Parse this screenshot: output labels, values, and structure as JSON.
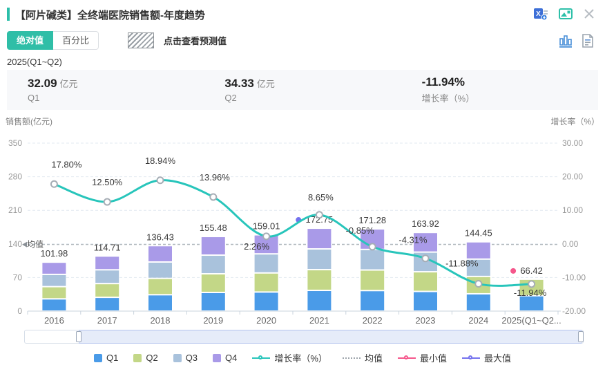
{
  "header": {
    "title": "【阿片碱类】全终端医院销售额-年度趋势",
    "icons": [
      "excel-export-icon",
      "image-export-icon",
      "close-icon"
    ],
    "view_icons": [
      "bar-chart-view-icon",
      "report-view-icon"
    ]
  },
  "controls": {
    "toggle_absolute": "绝对值",
    "toggle_percent": "百分比",
    "forecast_hint": "点击查看预测值"
  },
  "period": "2025(Q1~Q2)",
  "stats": [
    {
      "value": "32.09",
      "unit": "亿元",
      "label": "Q1"
    },
    {
      "value": "34.33",
      "unit": "亿元",
      "label": "Q2"
    },
    {
      "value": "-11.94%",
      "unit": "",
      "label": "增长率（%）"
    }
  ],
  "chart_data": {
    "type": "bar+line",
    "title": "全终端医院销售额-年度趋势",
    "categories": [
      "2016",
      "2017",
      "2018",
      "2019",
      "2020",
      "2021",
      "2022",
      "2023",
      "2024",
      "2025(Q1~Q2)"
    ],
    "tick_labels": [
      "2016",
      "2017",
      "2018",
      "2019",
      "2020",
      "2021",
      "2022",
      "2023",
      "2024",
      "2025(Q1~Q2..."
    ],
    "series": [
      {
        "name": "销售额(亿元)",
        "type": "stacked-bar",
        "values": [
          101.98,
          114.71,
          136.43,
          155.48,
          159.01,
          172.75,
          171.28,
          163.92,
          144.45,
          66.42
        ],
        "stack_legend": [
          "Q1",
          "Q2",
          "Q3",
          "Q4"
        ]
      },
      {
        "name": "增长率（%）",
        "type": "line",
        "values": [
          17.8,
          12.5,
          18.94,
          13.96,
          2.26,
          8.65,
          -0.85,
          -4.31,
          -11.88,
          -11.94
        ]
      }
    ],
    "last_category_quarters": {
      "Q1": 32.09,
      "Q2": 34.33
    },
    "max_marker": {
      "category": "2021",
      "value": 172.75
    },
    "min_marker": {
      "category": "2025(Q1~Q2)",
      "value": 66.42
    },
    "mean_label": "均值",
    "left_axis": {
      "label": "销售额(亿元)",
      "ticks": [
        0,
        70,
        140,
        210,
        280,
        350
      ],
      "range": [
        0,
        350
      ]
    },
    "right_axis": {
      "label": "增长率（%）",
      "ticks": [
        -20,
        -10,
        0,
        10,
        20,
        30
      ],
      "range": [
        -20,
        30
      ]
    },
    "grid": "dashed",
    "colors": {
      "q1": "#4A9BE8",
      "q2": "#C3D787",
      "q3": "#A9C2DC",
      "q4": "#A99AE8",
      "line": "#28C5BB",
      "mean": "#9CA3AA",
      "min": "#F5568B",
      "max": "#7472EE",
      "accent": "#2BBEA9"
    }
  },
  "legend": {
    "items": [
      {
        "label": "Q1",
        "type": "square",
        "color": "#4A9BE8"
      },
      {
        "label": "Q2",
        "type": "square",
        "color": "#C3D787"
      },
      {
        "label": "Q3",
        "type": "square",
        "color": "#A9C2DC"
      },
      {
        "label": "Q4",
        "type": "square",
        "color": "#A99AE8"
      },
      {
        "label": "增长率（%）",
        "type": "line-marker",
        "color": "#28C5BB"
      },
      {
        "label": "均值",
        "type": "dashed",
        "color": "#9CA3AA"
      },
      {
        "label": "最小值",
        "type": "line-marker",
        "color": "#F5568B"
      },
      {
        "label": "最大值",
        "type": "line-marker",
        "color": "#7472EE"
      }
    ]
  },
  "data_zoom": {
    "start_percent": 10,
    "end_percent": 99
  }
}
